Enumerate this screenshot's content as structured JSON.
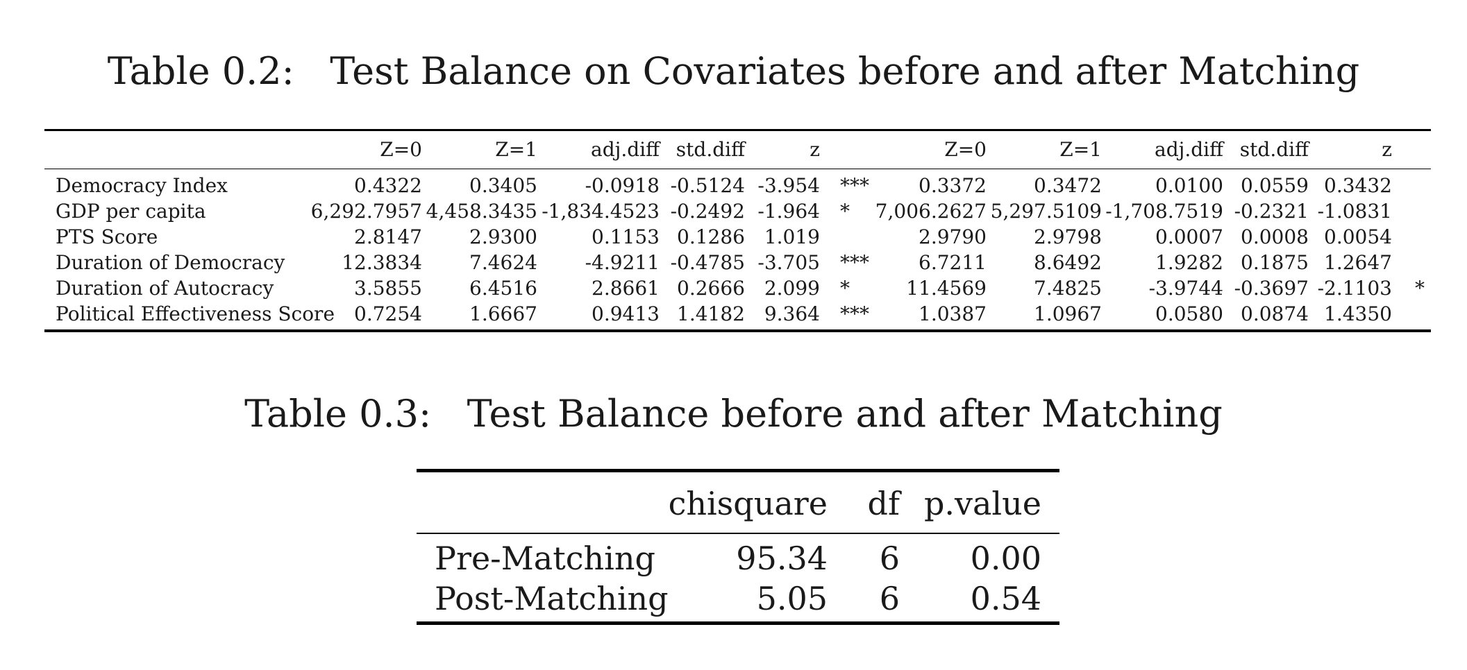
{
  "table1": {
    "caption": "Table 0.2:   Test Balance on Covariates before and after Matching",
    "headers": [
      "Z=0",
      "Z=1",
      "adj.diff",
      "std.diff",
      "z",
      "",
      "Z=0",
      "Z=1",
      "adj.diff",
      "std.diff",
      "z",
      ""
    ],
    "rows": [
      {
        "label": "Democracy Index",
        "cells": [
          "0.4322",
          "0.3405",
          "-0.0918",
          "-0.5124",
          "-3.954",
          "***",
          "0.3372",
          "0.3472",
          "0.0100",
          "0.0559",
          "0.3432",
          ""
        ]
      },
      {
        "label": "GDP per capita",
        "cells": [
          "6,292.7957",
          "4,458.3435",
          "-1,834.4523",
          "-0.2492",
          "-1.964",
          "*",
          "7,006.2627",
          "5,297.5109",
          "-1,708.7519",
          "-0.2321",
          "-1.0831",
          ""
        ]
      },
      {
        "label": "PTS Score",
        "cells": [
          "2.8147",
          "2.9300",
          "0.1153",
          "0.1286",
          "1.019",
          "",
          "2.9790",
          "2.9798",
          "0.0007",
          "0.0008",
          "0.0054",
          ""
        ]
      },
      {
        "label": "Duration of Democracy",
        "cells": [
          "12.3834",
          "7.4624",
          "-4.9211",
          "-0.4785",
          "-3.705",
          "***",
          "6.7211",
          "8.6492",
          "1.9282",
          "0.1875",
          "1.2647",
          ""
        ]
      },
      {
        "label": "Duration of Autocracy",
        "cells": [
          "3.5855",
          "6.4516",
          "2.8661",
          "0.2666",
          "2.099",
          "*",
          "11.4569",
          "7.4825",
          "-3.9744",
          "-0.3697",
          "-2.1103",
          "*"
        ]
      },
      {
        "label": "Political Effectiveness Score",
        "cells": [
          "0.7254",
          "1.6667",
          "0.9413",
          "1.4182",
          "9.364",
          "***",
          "1.0387",
          "1.0967",
          "0.0580",
          "0.0874",
          "1.4350",
          ""
        ]
      }
    ]
  },
  "table2": {
    "caption": "Table 0.3:   Test Balance before and after Matching",
    "headers": [
      "chisquare",
      "df",
      "p.value"
    ],
    "rows": [
      {
        "label": "Pre-Matching",
        "cells": [
          "95.34",
          "6",
          "0.00"
        ]
      },
      {
        "label": "Post-Matching",
        "cells": [
          "5.05",
          "6",
          "0.54"
        ]
      }
    ]
  }
}
